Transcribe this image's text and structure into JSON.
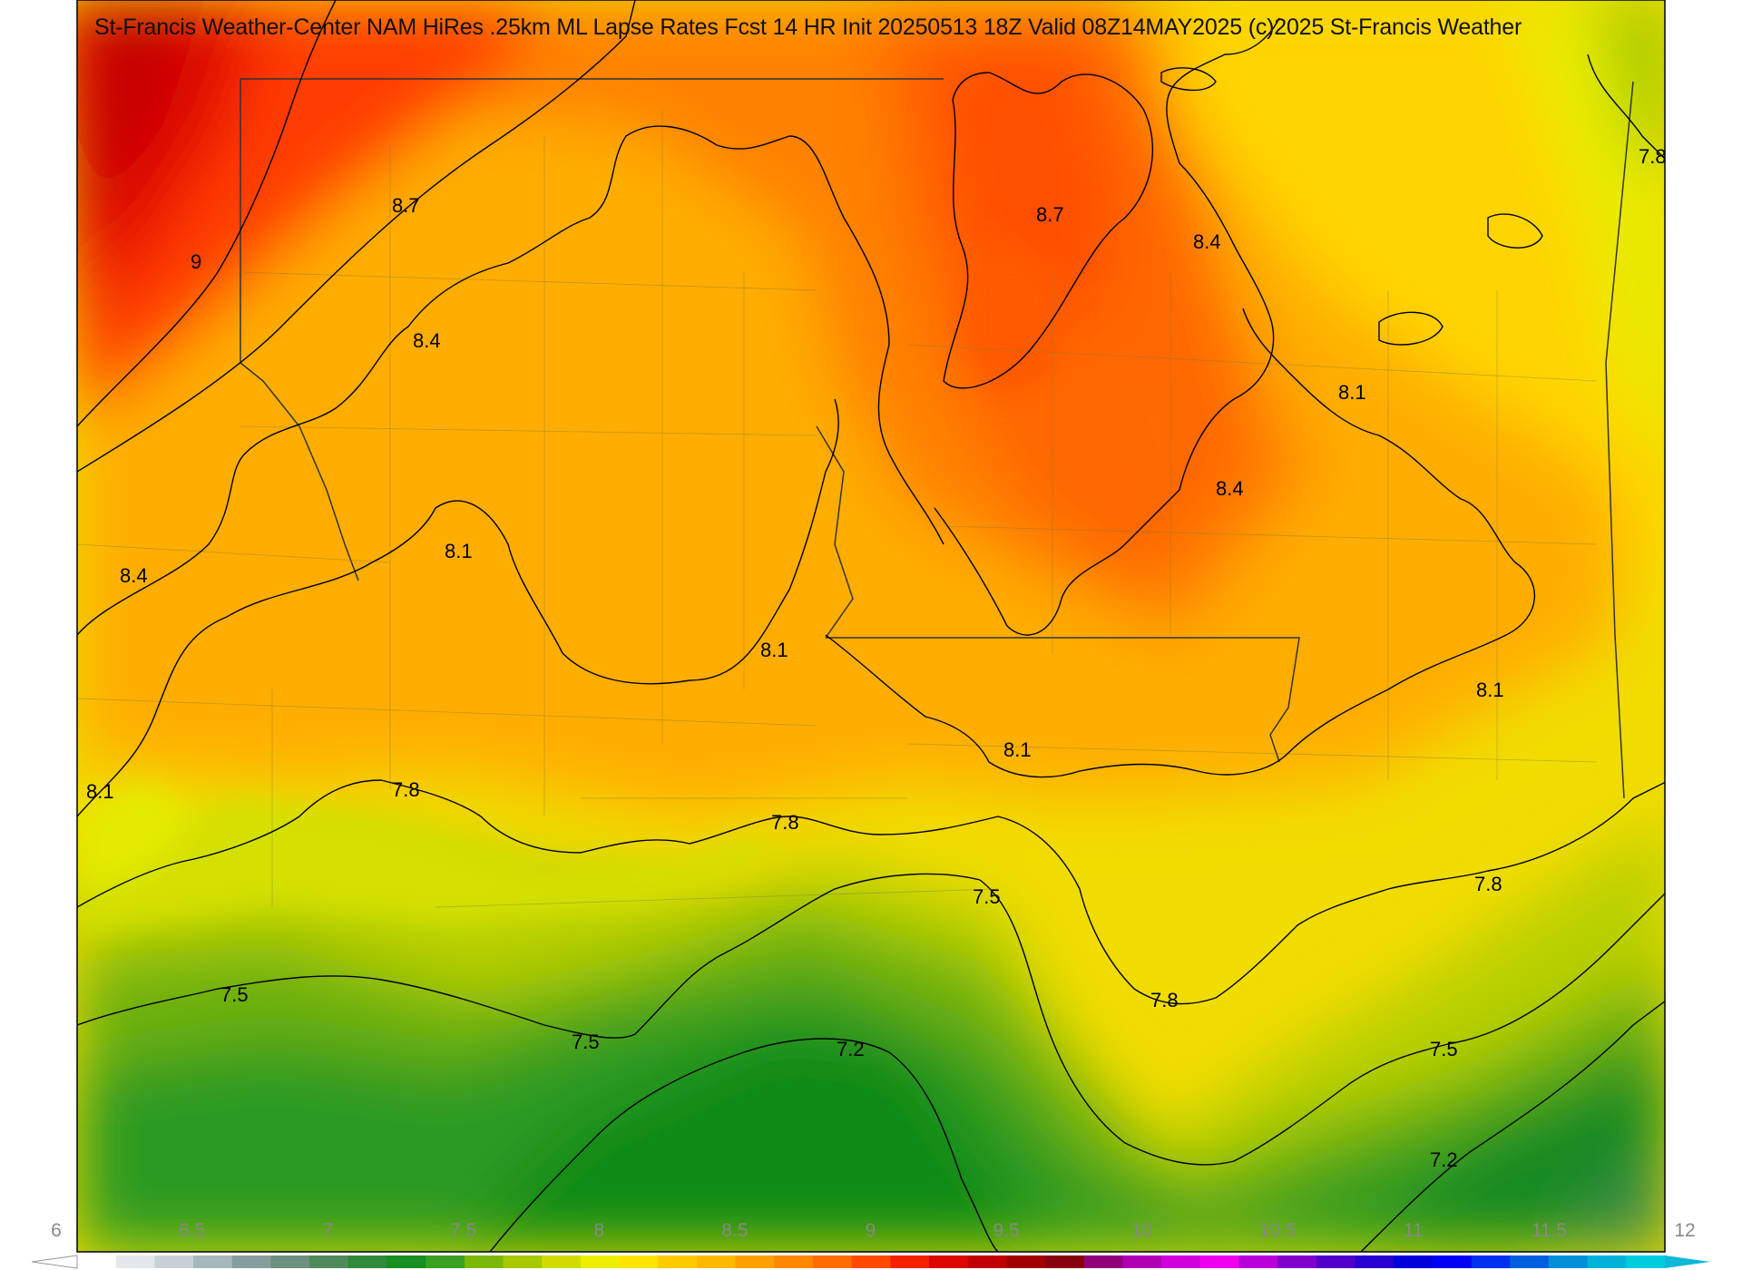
{
  "title": "St-Francis Weather-Center NAM HiRes .25km ML Lapse Rates  Fcst 14 HR Init 20250513 18Z  Valid 08Z14MAY2025    (c)2025 St-Francis Weather",
  "contour_labels": [
    "9",
    "8.7",
    "8.7",
    "8.4",
    "8.4",
    "8.4",
    "8.4",
    "8.1",
    "8.1",
    "8.1",
    "8.1",
    "8.1",
    "8.1",
    "7.8",
    "7.8",
    "7.8",
    "7.8",
    "7.8",
    "7.5",
    "7.5",
    "7.5",
    "7.5",
    "7.2",
    "7.2"
  ],
  "colorbar": {
    "ticks": [
      "6",
      "6.5",
      "7",
      "7.5",
      "8",
      "8.5",
      "9",
      "9.5",
      "10",
      "10.5",
      "11",
      "11.5",
      "12"
    ],
    "colors": [
      "#ffffff",
      "#e4e8ea",
      "#c8d2d6",
      "#a6b8bc",
      "#869f9e",
      "#6e9080",
      "#4f8a5c",
      "#2f8a3a",
      "#168e20",
      "#3aa020",
      "#7ab80a",
      "#a8c800",
      "#d0dc00",
      "#eeee00",
      "#ffe400",
      "#ffcc00",
      "#ffb800",
      "#ffa000",
      "#ff8800",
      "#ff6c00",
      "#ff4a00",
      "#f42000",
      "#dc0800",
      "#c00000",
      "#a00000",
      "#880010",
      "#90007a",
      "#b000b4",
      "#d000dc",
      "#ee00ee",
      "#b800d8",
      "#8000cc",
      "#5000c8",
      "#2800d0",
      "#0000dc",
      "#0000f4",
      "#0030f0",
      "#0060e0",
      "#0090d8",
      "#00b4d8",
      "#00cce0"
    ]
  }
}
